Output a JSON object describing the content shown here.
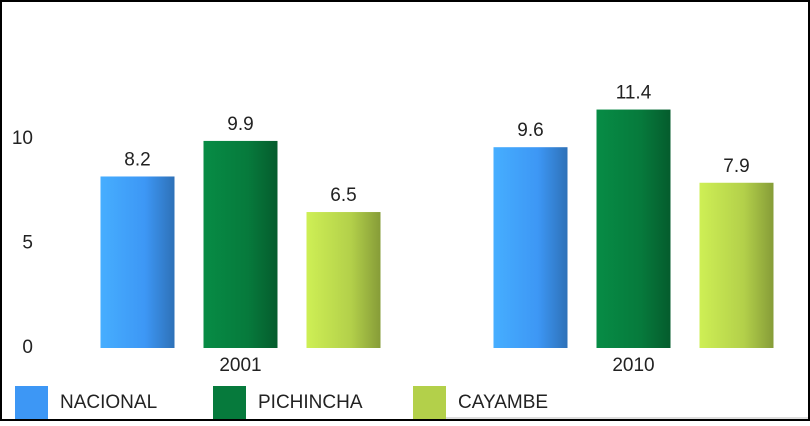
{
  "chart_data": {
    "type": "bar",
    "categories": [
      "2001",
      "2010"
    ],
    "series": [
      {
        "name": "NACIONAL",
        "color": "#3d97f5",
        "values": [
          8.2,
          9.6
        ]
      },
      {
        "name": "PICHINCHA",
        "color": "#067a3c",
        "values": [
          9.9,
          11.4
        ]
      },
      {
        "name": "CAYAMBE",
        "color": "#b3d04a",
        "values": [
          6.5,
          7.9
        ]
      }
    ],
    "ylim": [
      0,
      12
    ],
    "yticks": [
      0,
      5,
      10
    ],
    "grid": false,
    "legend": "bottom"
  }
}
